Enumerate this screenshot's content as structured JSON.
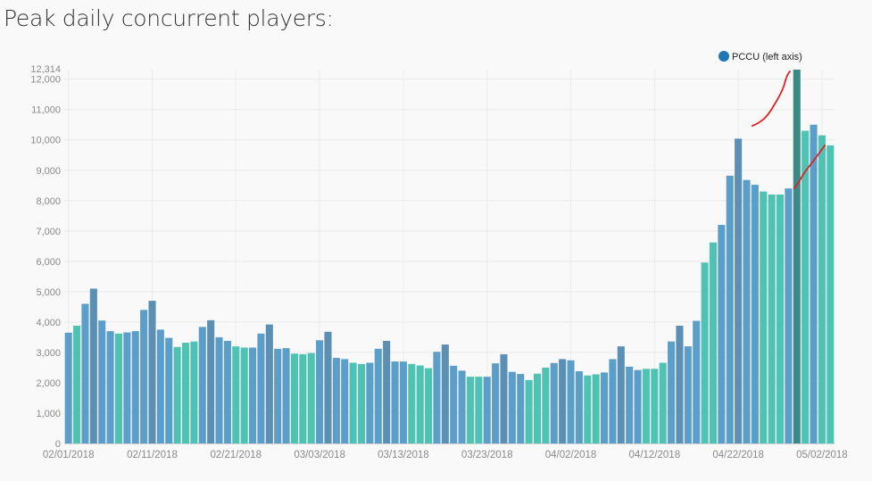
{
  "page": {
    "title": "Peak daily concurrent players:"
  },
  "chart_data": {
    "type": "bar",
    "start_date": "2018-02-01",
    "x_tick_labels": [
      "02/01/2018",
      "02/11/2018",
      "02/21/2018",
      "03/03/2018",
      "03/13/2018",
      "03/23/2018",
      "04/02/2018",
      "04/12/2018",
      "04/22/2018",
      "05/02/2018"
    ],
    "y_tick_values": [
      0,
      1000,
      2000,
      3000,
      4000,
      5000,
      6000,
      7000,
      8000,
      9000,
      10000,
      11000,
      12000
    ],
    "y_tick_labels": [
      "0",
      "1,000",
      "2,000",
      "3,000",
      "4,000",
      "5,000",
      "6,000",
      "7,000",
      "8,000",
      "9,000",
      "10,000",
      "11,000",
      "12,000"
    ],
    "ylim": [
      0,
      12314
    ],
    "ymax_label": "12,314",
    "legend": {
      "label": "PCCU (left axis)",
      "color": "#1f77b4",
      "position": "top-right"
    },
    "series": [
      {
        "name": "PCCU (left axis)",
        "values": [
          3650,
          3880,
          4600,
          5100,
          4050,
          3700,
          3620,
          3660,
          3700,
          4400,
          4700,
          3750,
          3480,
          3180,
          3320,
          3360,
          3840,
          4060,
          3500,
          3380,
          3200,
          3160,
          3160,
          3620,
          3920,
          3120,
          3140,
          2960,
          2940,
          2980,
          3400,
          3680,
          2820,
          2780,
          2660,
          2620,
          2660,
          3120,
          3380,
          2700,
          2700,
          2620,
          2570,
          2480,
          3020,
          3260,
          2560,
          2400,
          2200,
          2200,
          2200,
          2640,
          2940,
          2360,
          2290,
          2090,
          2300,
          2500,
          2650,
          2780,
          2740,
          2380,
          2240,
          2280,
          2340,
          2780,
          3200,
          2530,
          2420,
          2460,
          2460,
          2660,
          3360,
          3880,
          3200,
          4040,
          5960,
          6620,
          7200,
          8820,
          10040,
          8680,
          8520,
          8300,
          8200,
          8200,
          8400,
          12314,
          10300,
          10500,
          10150,
          9820
        ]
      },
      {
        "name": "",
        "values": [
          null,
          null,
          null,
          null,
          null,
          null,
          null,
          null,
          null,
          null,
          null,
          null,
          null,
          null,
          null,
          null,
          null,
          null,
          null,
          null,
          null,
          null,
          null,
          null,
          null,
          null,
          null,
          null,
          null,
          null,
          null,
          null,
          null,
          null,
          null,
          null,
          null,
          null,
          null,
          null,
          null,
          null,
          null,
          null,
          null,
          null,
          null,
          null,
          null,
          null,
          null,
          null,
          null,
          null,
          null,
          null,
          null,
          null,
          null,
          null,
          null,
          null,
          null,
          null,
          null,
          null,
          null,
          null,
          null,
          null,
          null,
          null,
          null,
          null,
          null,
          null,
          null,
          null,
          null,
          null,
          null,
          null,
          null,
          null,
          null,
          null,
          null,
          null,
          null,
          null,
          null,
          null
        ]
      }
    ],
    "day_colors": [
      "#5b9ec9",
      "#4fc3b3",
      "#5b9ec9",
      "#5b8fb4",
      "#5b9ec9",
      "#5b9ec9",
      "#4fc3b3",
      "#5b9ec9",
      "#5b9ec9",
      "#5b9ec9",
      "#5b8fb4",
      "#5b9ec9",
      "#5b9ec9",
      "#4fc3b3",
      "#4fc3b3",
      "#4fc3b3",
      "#5b9ec9",
      "#5b8fb4",
      "#5b9ec9",
      "#5b9ec9",
      "#4fc3b3",
      "#4fc3b3",
      "#5b9ec9",
      "#5b9ec9",
      "#5b8fb4",
      "#5b9ec9",
      "#5b9ec9",
      "#4fc3b3",
      "#4fc3b3",
      "#4fc3b3",
      "#5b9ec9",
      "#5b8fb4",
      "#5b9ec9",
      "#5b9ec9",
      "#4fc3b3",
      "#4fc3b3",
      "#5b9ec9",
      "#5b9ec9",
      "#5b8fb4",
      "#5b9ec9",
      "#5b9ec9",
      "#4fc3b3",
      "#4fc3b3",
      "#4fc3b3",
      "#5b9ec9",
      "#5b8fb4",
      "#5b9ec9",
      "#5b9ec9",
      "#4fc3b3",
      "#4fc3b3",
      "#5b9ec9",
      "#5b9ec9",
      "#5b8fb4",
      "#5b9ec9",
      "#5b9ec9",
      "#4fc3b3",
      "#4fc3b3",
      "#4fc3b3",
      "#5b9ec9",
      "#5b8fb4",
      "#5b9ec9",
      "#5b9ec9",
      "#4fc3b3",
      "#4fc3b3",
      "#5b9ec9",
      "#5b9ec9",
      "#5b8fb4",
      "#5b9ec9",
      "#5b9ec9",
      "#4fc3b3",
      "#4fc3b3",
      "#4fc3b3",
      "#5b9ec9",
      "#5b8fb4",
      "#5b9ec9",
      "#5b9ec9",
      "#4fc3b3",
      "#4fc3b3",
      "#5b9ec9",
      "#5b9ec9",
      "#5b8fb4",
      "#5b9ec9",
      "#5b9ec9",
      "#4fc3b3",
      "#4fc3b3",
      "#4fc3b3",
      "#5b9ec9",
      "#5b8fb4",
      "#4fc3b3",
      "#5b9ec9",
      "#4fc3b3",
      "#4fc3b3"
    ],
    "highlight_color": "#3a8a88",
    "highlight_index": 87,
    "annotation_color": "#e02020",
    "grid": true
  }
}
